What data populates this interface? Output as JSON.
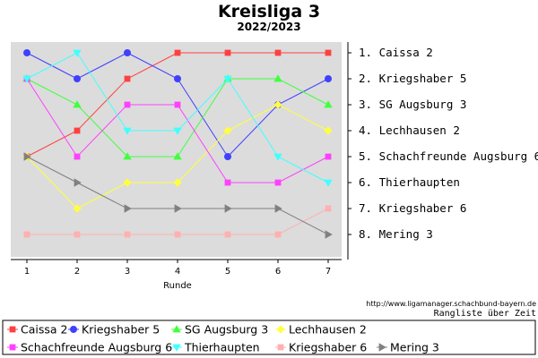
{
  "header": {
    "title": "Kreisliga 3",
    "subtitle": "2022/2023"
  },
  "footer": {
    "url": "http://www.ligamanager.schachbund-bayern.de",
    "note": "Rangliste über Zeit"
  },
  "chart_data": {
    "type": "line",
    "xlabel": "Runde",
    "x": [
      1,
      2,
      3,
      4,
      5,
      6,
      7
    ],
    "ylim": [
      1,
      8
    ],
    "y_inverted": true,
    "grid": false,
    "legend_position": "bottom",
    "final_ranking_labels": [
      "1. Caissa 2",
      "2. Kriegshaber 5",
      "3. SG Augsburg 3",
      "4. Lechhausen 2",
      "5. Schachfreunde Augsburg 6",
      "6. Thierhaupten",
      "7. Kriegshaber 6",
      "8. Mering 3"
    ],
    "series": [
      {
        "name": "Caissa 2",
        "color": "#ff4040",
        "marker": "square",
        "values": [
          5,
          4,
          2,
          1,
          1,
          1,
          1
        ]
      },
      {
        "name": "Kriegshaber 5",
        "color": "#4040ff",
        "marker": "circle",
        "values": [
          1,
          2,
          1,
          2,
          5,
          3,
          2
        ]
      },
      {
        "name": "SG Augsburg 3",
        "color": "#40ff40",
        "marker": "triangle-up",
        "values": [
          2,
          3,
          5,
          5,
          2,
          2,
          3
        ]
      },
      {
        "name": "Lechhausen 2",
        "color": "#ffff40",
        "marker": "diamond",
        "values": [
          5,
          7,
          6,
          6,
          4,
          3,
          4
        ]
      },
      {
        "name": "Schachfreunde Augsburg 6",
        "color": "#ff40ff",
        "marker": "square",
        "values": [
          2,
          5,
          3,
          3,
          6,
          6,
          5
        ]
      },
      {
        "name": "Thierhaupten",
        "color": "#40ffff",
        "marker": "triangle-down",
        "values": [
          2,
          1,
          4,
          4,
          2,
          5,
          6
        ]
      },
      {
        "name": "Kriegshaber 6",
        "color": "#ffb0b0",
        "marker": "square",
        "values": [
          8,
          8,
          8,
          8,
          8,
          8,
          7
        ]
      },
      {
        "name": "Mering 3",
        "color": "#808080",
        "marker": "triangle-right",
        "values": [
          5,
          6,
          7,
          7,
          7,
          7,
          8
        ]
      }
    ]
  }
}
